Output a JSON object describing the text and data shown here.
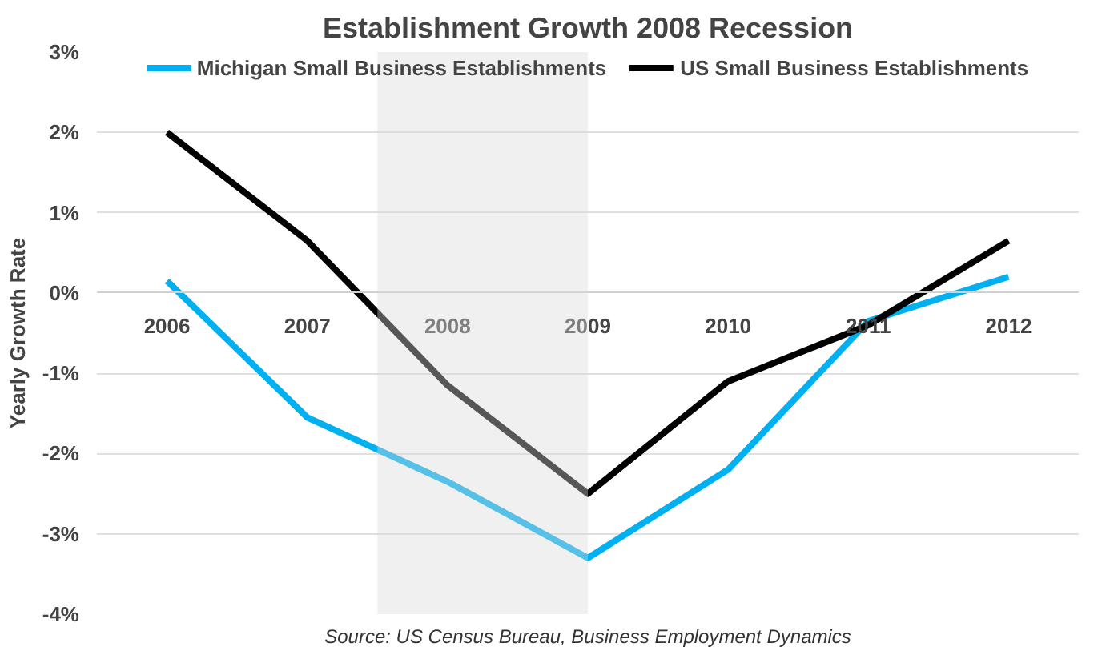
{
  "chart_data": {
    "type": "line",
    "title": "Establishment Growth 2008 Recession",
    "ylabel": "Yearly Growth Rate",
    "categories": [
      "2006",
      "2007",
      "2008",
      "2009",
      "2010",
      "2011",
      "2012"
    ],
    "series": [
      {
        "name": "Michigan Small Business Establishments",
        "color": "#00b0f0",
        "values": [
          0.15,
          -1.55,
          -2.35,
          -3.3,
          -2.2,
          -0.35,
          0.2
        ]
      },
      {
        "name": "US Small Business Establishments",
        "color": "#000000",
        "values": [
          2.0,
          0.65,
          -1.15,
          -2.5,
          -1.1,
          -0.4,
          0.65
        ]
      }
    ],
    "ylim": [
      -4,
      3
    ],
    "yticks": [
      {
        "value": -4,
        "label": "-4%"
      },
      {
        "value": -3,
        "label": "-3%"
      },
      {
        "value": -2,
        "label": "-2%"
      },
      {
        "value": -1,
        "label": "-1%"
      },
      {
        "value": 0,
        "label": "0%"
      },
      {
        "value": 1,
        "label": "1%"
      },
      {
        "value": 2,
        "label": "2%"
      },
      {
        "value": 3,
        "label": "3%"
      }
    ],
    "bands": [
      {
        "axis": "x",
        "from": "2008",
        "to": "2009",
        "color": "#d9d9d9"
      }
    ],
    "grid": "y",
    "legend": "top",
    "marker": "none",
    "line_style": "solid",
    "annotations": [
      "Source: US Census Bureau, Business Employment Dynamics"
    ]
  }
}
